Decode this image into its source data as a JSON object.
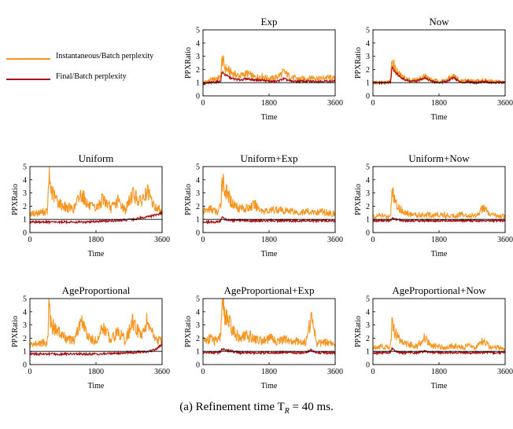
{
  "legend": {
    "items": [
      {
        "label": "Instantaneous/Batch perplexity",
        "color": "#F7941D"
      },
      {
        "label": "Final/Batch perplexity",
        "color": "#A50F15"
      }
    ]
  },
  "caption": "(a) Refinement time T",
  "caption_sub": "R",
  "caption_tail": " = 40 ms.",
  "colors": {
    "instantaneous": "#F7941D",
    "final": "#A50F15",
    "reference": "#000000"
  },
  "chart_data": [
    {
      "type": "line",
      "title": "Exp",
      "xlabel": "Time",
      "ylabel": "PPXRatio",
      "xlim": [
        0,
        3600
      ],
      "ylim": [
        0,
        5
      ],
      "xticks": [
        "0",
        "1800",
        "3600"
      ],
      "yticks": [
        "0",
        "1",
        "2",
        "3",
        "4",
        "5"
      ],
      "reference_line": 1,
      "series": [
        {
          "name": "Instantaneous/Batch perplexity",
          "x": [
            0,
            200,
            480,
            520,
            600,
            800,
            1000,
            1200,
            1400,
            1600,
            1800,
            2000,
            2200,
            2400,
            2600,
            2800,
            3000,
            3200,
            3400,
            3600
          ],
          "values": [
            1.0,
            1.2,
            1.4,
            2.8,
            2.1,
            1.7,
            1.5,
            1.7,
            1.4,
            1.5,
            1.3,
            1.4,
            1.8,
            1.4,
            1.3,
            1.3,
            1.4,
            1.3,
            1.4,
            1.3
          ]
        },
        {
          "name": "Final/Batch perplexity",
          "x": [
            0,
            200,
            480,
            520,
            600,
            800,
            1000,
            1200,
            1400,
            1600,
            1800,
            2000,
            2200,
            2400,
            2600,
            2800,
            3000,
            3200,
            3400,
            3600
          ],
          "values": [
            0.9,
            1.0,
            1.1,
            1.8,
            1.6,
            1.3,
            1.2,
            1.3,
            1.2,
            1.2,
            1.1,
            1.1,
            1.3,
            1.1,
            1.1,
            1.1,
            1.1,
            1.1,
            1.1,
            1.1
          ]
        }
      ]
    },
    {
      "type": "line",
      "title": "Now",
      "xlabel": "Time",
      "ylabel": "PPXRatio",
      "xlim": [
        0,
        3600
      ],
      "ylim": [
        0,
        5
      ],
      "xticks": [
        "0",
        "1800",
        "3600"
      ],
      "yticks": [
        "0",
        "1",
        "2",
        "3",
        "4",
        "5"
      ],
      "reference_line": 1,
      "series": [
        {
          "name": "Instantaneous/Batch perplexity",
          "x": [
            0,
            200,
            480,
            520,
            600,
            800,
            1000,
            1200,
            1400,
            1600,
            1800,
            2000,
            2200,
            2400,
            2600,
            2800,
            3000,
            3200,
            3400,
            3600
          ],
          "values": [
            1.0,
            1.0,
            1.1,
            2.9,
            2.0,
            1.4,
            1.2,
            1.2,
            1.5,
            1.2,
            1.1,
            1.2,
            1.5,
            1.1,
            1.2,
            1.1,
            1.2,
            1.1,
            1.1,
            1.0
          ]
        },
        {
          "name": "Final/Batch perplexity",
          "x": [
            0,
            200,
            480,
            520,
            600,
            800,
            1000,
            1200,
            1400,
            1600,
            1800,
            2000,
            2200,
            2400,
            2600,
            2800,
            3000,
            3200,
            3400,
            3600
          ],
          "values": [
            1.0,
            1.0,
            1.0,
            2.2,
            1.8,
            1.3,
            1.1,
            1.1,
            1.4,
            1.1,
            1.0,
            1.1,
            1.4,
            1.0,
            1.1,
            1.0,
            1.1,
            1.0,
            1.0,
            1.0
          ]
        }
      ]
    },
    {
      "type": "line",
      "title": "Uniform",
      "xlabel": "Time",
      "ylabel": "PPXRatio",
      "xlim": [
        0,
        3600
      ],
      "ylim": [
        0,
        5
      ],
      "xticks": [
        "0",
        "1800",
        "3600"
      ],
      "yticks": [
        "0",
        "1",
        "2",
        "3",
        "4",
        "5"
      ],
      "reference_line": 1,
      "series": [
        {
          "name": "Instantaneous/Batch perplexity",
          "x": [
            0,
            200,
            480,
            520,
            600,
            800,
            1000,
            1200,
            1400,
            1600,
            1800,
            2000,
            2200,
            2400,
            2600,
            2800,
            3000,
            3200,
            3400,
            3600
          ],
          "values": [
            1.4,
            1.5,
            1.6,
            4.2,
            3.0,
            2.2,
            1.9,
            1.8,
            3.0,
            2.0,
            1.8,
            2.6,
            1.8,
            2.4,
            1.7,
            3.0,
            2.3,
            3.0,
            1.9,
            1.7
          ]
        },
        {
          "name": "Final/Batch perplexity",
          "x": [
            0,
            200,
            480,
            520,
            600,
            800,
            1000,
            1200,
            1400,
            1600,
            1800,
            2000,
            2200,
            2400,
            2600,
            2800,
            3000,
            3200,
            3400,
            3600
          ],
          "values": [
            0.8,
            0.8,
            0.8,
            0.8,
            0.8,
            0.8,
            0.8,
            0.8,
            0.8,
            0.8,
            0.85,
            0.85,
            0.9,
            0.9,
            0.95,
            1.0,
            1.1,
            1.2,
            1.3,
            1.5
          ]
        }
      ]
    },
    {
      "type": "line",
      "title": "Uniform+Exp",
      "xlabel": "Time",
      "ylabel": "PPXRatio",
      "xlim": [
        0,
        3600
      ],
      "ylim": [
        0,
        5
      ],
      "xticks": [
        "0",
        "1800",
        "3600"
      ],
      "yticks": [
        "0",
        "1",
        "2",
        "3",
        "4",
        "5"
      ],
      "reference_line": 1,
      "series": [
        {
          "name": "Instantaneous/Batch perplexity",
          "x": [
            0,
            200,
            400,
            480,
            520,
            600,
            800,
            1000,
            1200,
            1400,
            1600,
            1800,
            2000,
            2200,
            2400,
            2600,
            2800,
            3000,
            3200,
            3400,
            3600
          ],
          "values": [
            1.6,
            1.8,
            1.5,
            2.0,
            4.2,
            3.2,
            2.2,
            1.9,
            1.8,
            2.1,
            1.7,
            1.6,
            1.8,
            1.6,
            1.7,
            1.5,
            1.6,
            1.5,
            1.6,
            1.5,
            1.4
          ]
        },
        {
          "name": "Final/Batch perplexity",
          "x": [
            0,
            200,
            400,
            480,
            520,
            600,
            800,
            1000,
            1200,
            1400,
            1600,
            1800,
            2000,
            2200,
            2400,
            2600,
            2800,
            3000,
            3200,
            3400,
            3600
          ],
          "values": [
            0.8,
            0.8,
            0.8,
            0.9,
            1.2,
            1.0,
            0.9,
            0.9,
            0.9,
            0.9,
            0.9,
            0.9,
            0.9,
            0.9,
            0.9,
            0.9,
            0.9,
            0.9,
            0.9,
            0.9,
            0.9
          ]
        }
      ]
    },
    {
      "type": "line",
      "title": "Uniform+Now",
      "xlabel": "Time",
      "ylabel": "PPXRatio",
      "xlim": [
        0,
        3600
      ],
      "ylim": [
        0,
        5
      ],
      "xticks": [
        "0",
        "1800",
        "3600"
      ],
      "yticks": [
        "0",
        "1",
        "2",
        "3",
        "4",
        "5"
      ],
      "reference_line": 1,
      "series": [
        {
          "name": "Instantaneous/Batch perplexity",
          "x": [
            0,
            200,
            400,
            480,
            520,
            600,
            800,
            1000,
            1200,
            1400,
            1600,
            1800,
            2000,
            2200,
            2400,
            2600,
            2800,
            3000,
            3200,
            3400,
            3600
          ],
          "values": [
            1.2,
            1.3,
            1.2,
            1.4,
            3.2,
            2.4,
            1.6,
            1.4,
            1.3,
            1.4,
            1.3,
            1.4,
            1.3,
            1.3,
            1.4,
            1.3,
            1.3,
            1.9,
            1.3,
            1.3,
            1.2
          ]
        },
        {
          "name": "Final/Batch perplexity",
          "x": [
            0,
            200,
            400,
            480,
            520,
            600,
            800,
            1000,
            1200,
            1400,
            1600,
            1800,
            2000,
            2200,
            2400,
            2600,
            2800,
            3000,
            3200,
            3400,
            3600
          ],
          "values": [
            0.9,
            0.9,
            0.9,
            0.9,
            1.1,
            1.0,
            0.9,
            0.9,
            0.9,
            0.9,
            0.9,
            0.9,
            0.9,
            0.9,
            0.9,
            0.9,
            0.9,
            0.9,
            0.9,
            0.9,
            0.9
          ]
        }
      ]
    },
    {
      "type": "line",
      "title": "AgeProportional",
      "xlabel": "Time",
      "ylabel": "PPXRatio",
      "xlim": [
        0,
        3600
      ],
      "ylim": [
        0,
        5
      ],
      "xticks": [
        "0",
        "1800",
        "3600"
      ],
      "yticks": [
        "0",
        "1",
        "2",
        "3",
        "4",
        "5"
      ],
      "reference_line": 1,
      "series": [
        {
          "name": "Instantaneous/Batch perplexity",
          "x": [
            0,
            200,
            480,
            520,
            600,
            800,
            1000,
            1200,
            1400,
            1600,
            1800,
            2000,
            2200,
            2400,
            2600,
            2800,
            3000,
            3200,
            3400,
            3600
          ],
          "values": [
            1.5,
            1.6,
            1.7,
            4.4,
            3.0,
            2.4,
            1.9,
            1.8,
            3.3,
            2.0,
            1.8,
            2.8,
            1.9,
            2.5,
            1.8,
            3.2,
            2.2,
            3.3,
            1.9,
            1.7
          ]
        },
        {
          "name": "Final/Batch perplexity",
          "x": [
            0,
            200,
            480,
            520,
            600,
            800,
            1000,
            1200,
            1400,
            1600,
            1800,
            2000,
            2200,
            2400,
            2600,
            2800,
            3000,
            3200,
            3400,
            3600
          ],
          "values": [
            0.8,
            0.8,
            0.8,
            0.8,
            0.8,
            0.8,
            0.8,
            0.8,
            0.8,
            0.8,
            0.8,
            0.8,
            0.85,
            0.85,
            0.9,
            0.9,
            0.95,
            1.0,
            1.1,
            1.5
          ]
        }
      ]
    },
    {
      "type": "line",
      "title": "AgeProportional+Exp",
      "xlabel": "Time",
      "ylabel": "PPXRatio",
      "xlim": [
        0,
        3600
      ],
      "ylim": [
        0,
        5
      ],
      "xticks": [
        "0",
        "1800",
        "3600"
      ],
      "yticks": [
        "0",
        "1",
        "2",
        "3",
        "4",
        "5"
      ],
      "reference_line": 1,
      "series": [
        {
          "name": "Instantaneous/Batch perplexity",
          "x": [
            0,
            200,
            400,
            480,
            520,
            600,
            800,
            1000,
            1200,
            1400,
            1600,
            1800,
            2000,
            2200,
            2400,
            2600,
            2800,
            2950,
            3100,
            3400,
            3600
          ],
          "values": [
            1.8,
            2.0,
            1.7,
            2.2,
            5.0,
            3.8,
            2.6,
            2.0,
            2.2,
            2.0,
            1.8,
            2.0,
            1.8,
            1.9,
            1.7,
            1.8,
            1.7,
            3.6,
            1.6,
            1.7,
            1.5
          ]
        },
        {
          "name": "Final/Batch perplexity",
          "x": [
            0,
            200,
            400,
            480,
            520,
            600,
            800,
            1000,
            1200,
            1400,
            1600,
            1800,
            2000,
            2200,
            2400,
            2600,
            2800,
            2950,
            3100,
            3400,
            3600
          ],
          "values": [
            0.9,
            0.9,
            0.9,
            1.0,
            1.2,
            1.1,
            1.0,
            0.9,
            0.9,
            0.9,
            0.9,
            0.9,
            0.9,
            0.9,
            0.9,
            0.9,
            0.9,
            1.1,
            0.9,
            0.9,
            0.9
          ]
        }
      ]
    },
    {
      "type": "line",
      "title": "AgeProportional+Now",
      "xlabel": "Time",
      "ylabel": "PPXRatio",
      "xlim": [
        0,
        3600
      ],
      "ylim": [
        0,
        5
      ],
      "xticks": [
        "0",
        "1800",
        "3600"
      ],
      "yticks": [
        "0",
        "1",
        "2",
        "3",
        "4",
        "5"
      ],
      "reference_line": 1,
      "series": [
        {
          "name": "Instantaneous/Batch perplexity",
          "x": [
            0,
            200,
            400,
            480,
            520,
            600,
            800,
            1000,
            1200,
            1400,
            1600,
            1800,
            2000,
            2200,
            2400,
            2600,
            2800,
            3000,
            3200,
            3400,
            3600
          ],
          "values": [
            1.3,
            1.4,
            1.3,
            1.5,
            3.2,
            2.4,
            1.7,
            1.5,
            1.4,
            2.0,
            1.4,
            1.4,
            1.3,
            1.4,
            1.3,
            1.4,
            1.3,
            1.8,
            1.3,
            1.3,
            1.2
          ]
        },
        {
          "name": "Final/Batch perplexity",
          "x": [
            0,
            200,
            400,
            480,
            520,
            600,
            800,
            1000,
            1200,
            1400,
            1600,
            1800,
            2000,
            2200,
            2400,
            2600,
            2800,
            3000,
            3200,
            3400,
            3600
          ],
          "values": [
            0.9,
            0.9,
            0.9,
            1.0,
            1.2,
            1.0,
            0.9,
            0.9,
            0.9,
            1.0,
            0.9,
            0.9,
            0.9,
            0.9,
            0.9,
            0.9,
            0.9,
            0.9,
            0.9,
            0.9,
            0.9
          ]
        }
      ]
    }
  ]
}
